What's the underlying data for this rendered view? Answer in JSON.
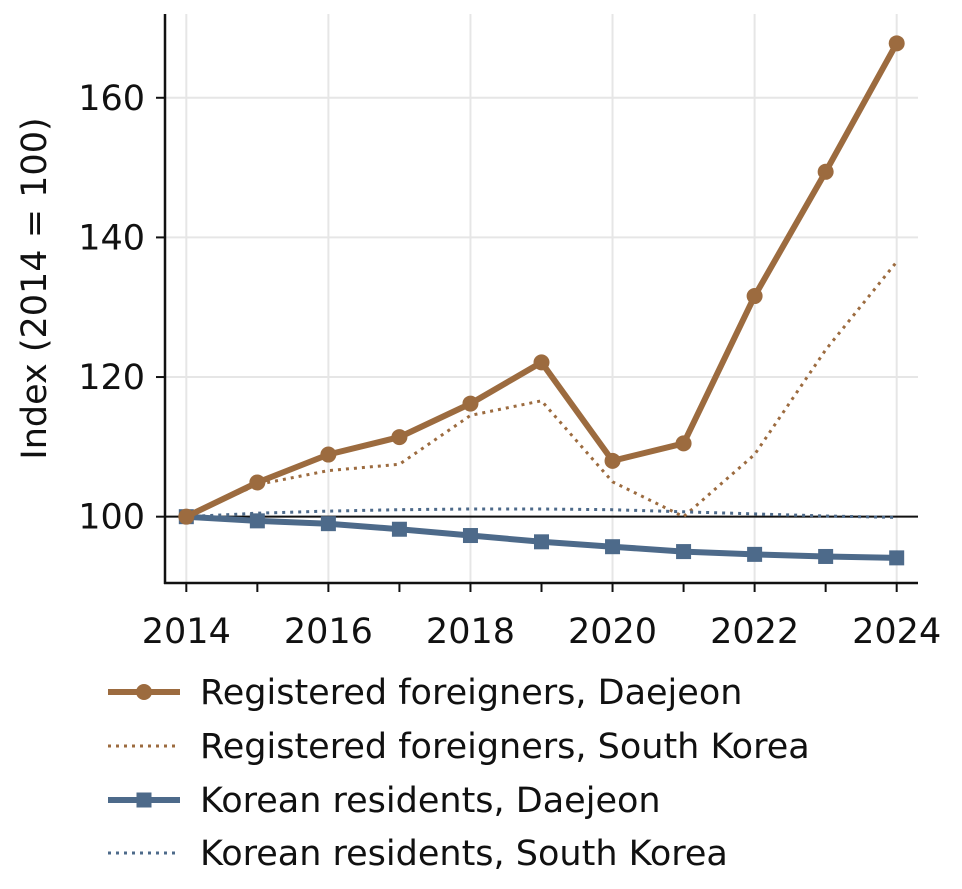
{
  "chart_data": {
    "type": "line",
    "title": "",
    "xlabel": "",
    "ylabel": "Index (2014 = 100)",
    "x": [
      2014,
      2015,
      2016,
      2017,
      2018,
      2019,
      2020,
      2021,
      2022,
      2023,
      2024
    ],
    "x_ticks": [
      "2014",
      "2016",
      "2018",
      "2020",
      "2022",
      "2024"
    ],
    "y_ticks": [
      "100",
      "120",
      "140",
      "160"
    ],
    "xlim": [
      2013.7,
      2024.3
    ],
    "ylim": [
      90.5,
      172
    ],
    "reference_line": 100,
    "grid": true,
    "legend_position": "bottom",
    "series": [
      {
        "name": "Registered foreigners, Daejeon",
        "color": "#9c6b3f",
        "style": "solid",
        "marker": "circle",
        "values": [
          100,
          104.9,
          108.9,
          111.4,
          116.2,
          122.1,
          108.0,
          110.5,
          131.6,
          149.4,
          167.8
        ]
      },
      {
        "name": "Registered foreigners, South Korea",
        "color": "#9c6b3f",
        "style": "dotted",
        "marker": "none",
        "values": [
          100,
          104.6,
          106.6,
          107.5,
          114.5,
          116.6,
          105.0,
          100.0,
          108.9,
          123.9,
          136.5
        ]
      },
      {
        "name": "Korean residents, Daejeon",
        "color": "#4d6a8a",
        "style": "solid",
        "marker": "square",
        "values": [
          100,
          99.4,
          99.0,
          98.2,
          97.3,
          96.4,
          95.7,
          95.0,
          94.6,
          94.3,
          94.1
        ]
      },
      {
        "name": "Korean residents, South Korea",
        "color": "#4d6a8a",
        "style": "dotted",
        "marker": "none",
        "values": [
          100,
          100.5,
          100.8,
          101.0,
          101.1,
          101.1,
          101.0,
          100.7,
          100.4,
          100.1,
          99.9
        ]
      }
    ]
  }
}
